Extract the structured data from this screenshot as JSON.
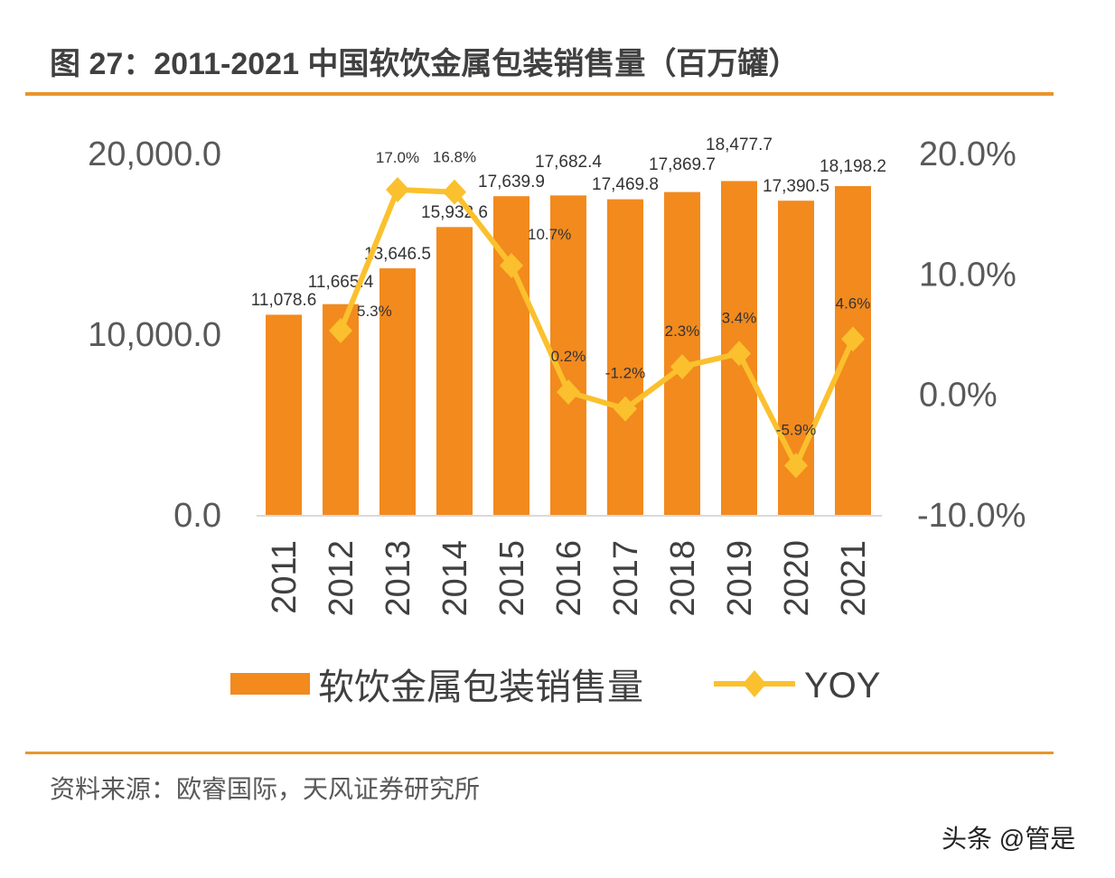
{
  "title": "图 27：2011-2021 中国软饮金属包装销售量（百万罐）",
  "source": "资料来源：欧睿国际，天风证券研究所",
  "watermark": "头条 @管是",
  "colors": {
    "bar": "#F28A1E",
    "line": "#FBC02D",
    "rule": "#E8952E"
  },
  "chart_data": {
    "type": "bar+line",
    "categories": [
      "2011",
      "2012",
      "2013",
      "2014",
      "2015",
      "2016",
      "2017",
      "2018",
      "2019",
      "2020",
      "2021"
    ],
    "series": [
      {
        "name": "软饮金属包装销售量",
        "type": "bar",
        "axis": "left",
        "values": [
          11078.6,
          11665.4,
          13646.5,
          15932.6,
          17639.9,
          17682.4,
          17469.8,
          17869.7,
          18477.7,
          17390.5,
          18198.2
        ],
        "labels": [
          "11,078.6",
          "11,665.4",
          "13,646.5",
          "15,932.6",
          "17,639.9",
          "17,682.4",
          "17,469.8",
          "17,869.7",
          "18,477.7",
          "17,390.5",
          "18,198.2"
        ]
      },
      {
        "name": "YOY",
        "type": "line",
        "axis": "right",
        "values": [
          null,
          5.3,
          17.0,
          16.8,
          10.7,
          0.2,
          -1.2,
          2.3,
          3.4,
          -5.9,
          4.6
        ],
        "labels": [
          "",
          "5.3%",
          "17.0%",
          "16.8%",
          "10.7%",
          "0.2%",
          "-1.2%",
          "2.3%",
          "3.4%",
          "-5.9%",
          "4.6%"
        ]
      }
    ],
    "left_axis": {
      "range": [
        0,
        20000
      ],
      "ticks": [
        "0.0",
        "10,000.0",
        "20,000.0"
      ]
    },
    "right_axis": {
      "range": [
        -10,
        20
      ],
      "unit": "%",
      "ticks": [
        "-10.0%",
        "0.0%",
        "10.0%",
        "20.0%"
      ]
    },
    "grid": false,
    "legend": "bottom"
  }
}
